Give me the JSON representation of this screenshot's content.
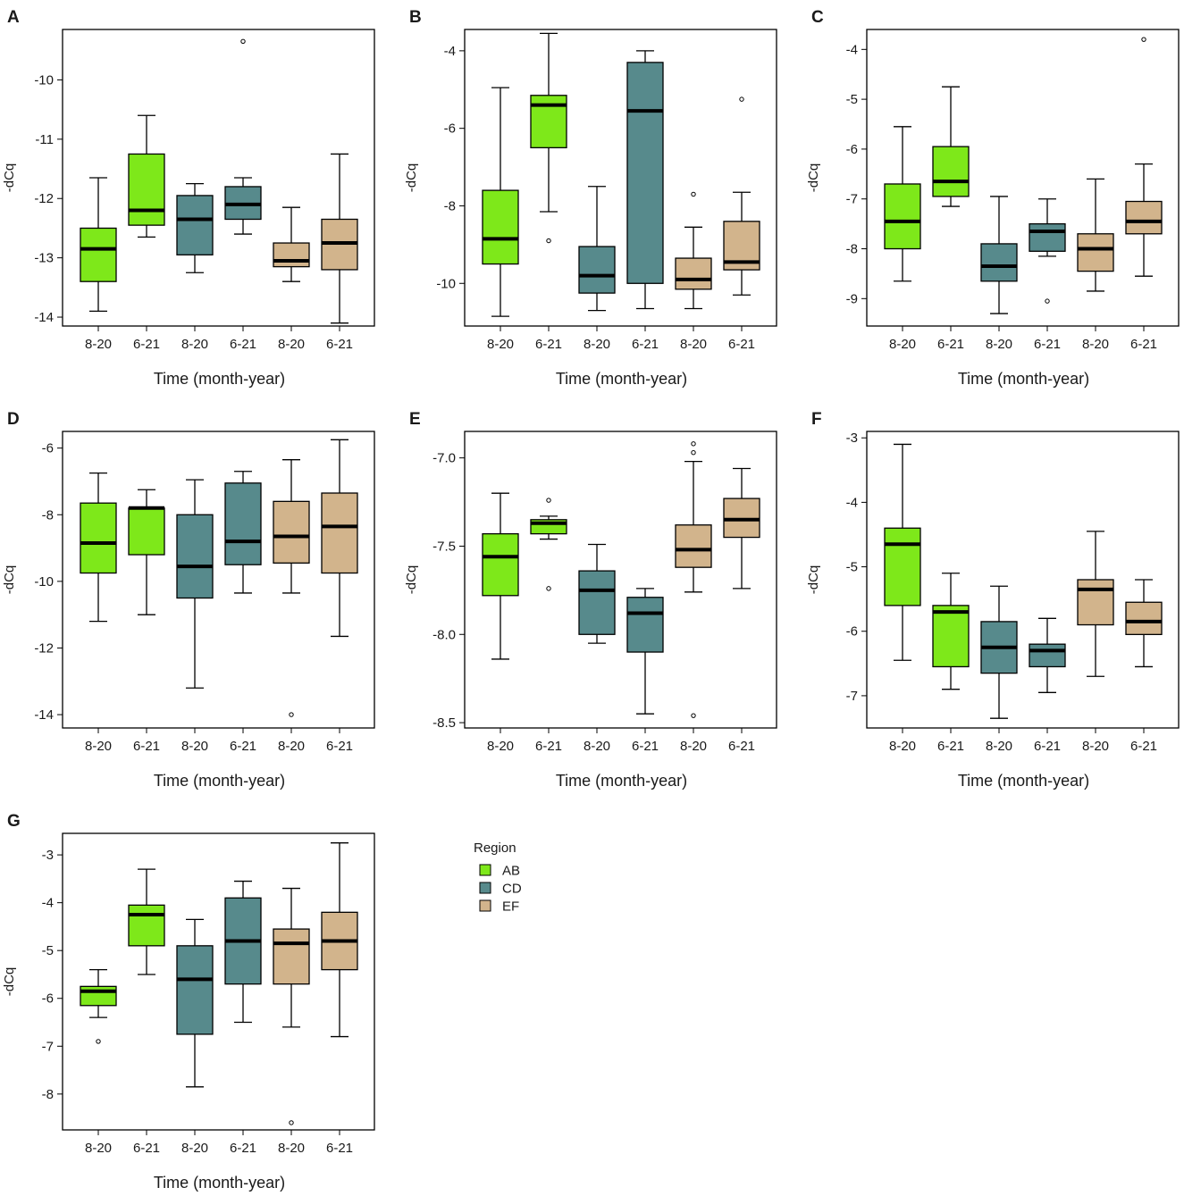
{
  "legend": {
    "title": "Region",
    "items": [
      {
        "label": "AB",
        "color": "#7ee81a"
      },
      {
        "label": "CD",
        "color": "#578a8c"
      },
      {
        "label": "EF",
        "color": "#d2b48c"
      }
    ]
  },
  "chart_data": [
    {
      "type": "boxplot",
      "panel": "A",
      "xlabel": "Time (month-year)",
      "ylabel": "-dCq",
      "ylim": [
        -14.15,
        -9.15
      ],
      "yticks": [
        -10,
        -11,
        -12,
        -13,
        -14
      ],
      "categories": [
        "8-20",
        "6-21",
        "8-20",
        "6-21",
        "8-20",
        "6-21"
      ],
      "regions": [
        "AB",
        "AB",
        "CD",
        "CD",
        "EF",
        "EF"
      ],
      "boxes": [
        {
          "low": -13.9,
          "q1": -13.4,
          "median": -12.85,
          "q3": -12.5,
          "high": -11.65,
          "outliers": []
        },
        {
          "low": -12.65,
          "q1": -12.45,
          "median": -12.2,
          "q3": -11.25,
          "high": -10.6,
          "outliers": []
        },
        {
          "low": -13.25,
          "q1": -12.95,
          "median": -12.35,
          "q3": -11.95,
          "high": -11.75,
          "outliers": []
        },
        {
          "low": -12.6,
          "q1": -12.35,
          "median": -12.1,
          "q3": -11.8,
          "high": -11.65,
          "outliers": [
            -9.35
          ]
        },
        {
          "low": -13.4,
          "q1": -13.15,
          "median": -13.05,
          "q3": -12.75,
          "high": -12.15,
          "outliers": []
        },
        {
          "low": -14.1,
          "q1": -13.2,
          "median": -12.75,
          "q3": -12.35,
          "high": -11.25,
          "outliers": []
        }
      ]
    },
    {
      "type": "boxplot",
      "panel": "B",
      "xlabel": "Time (month-year)",
      "ylabel": "-dCq",
      "ylim": [
        -11.1,
        -3.45
      ],
      "yticks": [
        -4,
        -6,
        -8,
        -10
      ],
      "categories": [
        "8-20",
        "6-21",
        "8-20",
        "6-21",
        "8-20",
        "6-21"
      ],
      "regions": [
        "AB",
        "AB",
        "CD",
        "CD",
        "EF",
        "EF"
      ],
      "boxes": [
        {
          "low": -10.85,
          "q1": -9.5,
          "median": -8.85,
          "q3": -7.6,
          "high": -4.95,
          "outliers": []
        },
        {
          "low": -8.15,
          "q1": -6.5,
          "median": -5.4,
          "q3": -5.15,
          "high": -3.55,
          "outliers": [
            -8.9
          ]
        },
        {
          "low": -10.7,
          "q1": -10.25,
          "median": -9.8,
          "q3": -9.05,
          "high": -7.5,
          "outliers": []
        },
        {
          "low": -10.65,
          "q1": -10.0,
          "median": -5.55,
          "q3": -4.3,
          "high": -4.0,
          "outliers": []
        },
        {
          "low": -10.65,
          "q1": -10.15,
          "median": -9.9,
          "q3": -9.35,
          "high": -8.55,
          "outliers": [
            -7.7
          ]
        },
        {
          "low": -10.3,
          "q1": -9.65,
          "median": -9.45,
          "q3": -8.4,
          "high": -7.65,
          "outliers": [
            -5.25
          ]
        }
      ]
    },
    {
      "type": "boxplot",
      "panel": "C",
      "xlabel": "Time (month-year)",
      "ylabel": "-dCq",
      "ylim": [
        -9.55,
        -3.6
      ],
      "yticks": [
        -4,
        -5,
        -6,
        -7,
        -8,
        -9
      ],
      "categories": [
        "8-20",
        "6-21",
        "8-20",
        "6-21",
        "8-20",
        "6-21"
      ],
      "regions": [
        "AB",
        "AB",
        "CD",
        "CD",
        "EF",
        "EF"
      ],
      "boxes": [
        {
          "low": -8.65,
          "q1": -8.0,
          "median": -7.45,
          "q3": -6.7,
          "high": -5.55,
          "outliers": []
        },
        {
          "low": -7.15,
          "q1": -6.95,
          "median": -6.65,
          "q3": -5.95,
          "high": -4.75,
          "outliers": []
        },
        {
          "low": -9.3,
          "q1": -8.65,
          "median": -8.35,
          "q3": -7.9,
          "high": -6.95,
          "outliers": []
        },
        {
          "low": -8.15,
          "q1": -8.05,
          "median": -7.65,
          "q3": -7.5,
          "high": -7.0,
          "outliers": [
            -9.05
          ]
        },
        {
          "low": -8.85,
          "q1": -8.45,
          "median": -8.0,
          "q3": -7.7,
          "high": -6.6,
          "outliers": []
        },
        {
          "low": -8.55,
          "q1": -7.7,
          "median": -7.45,
          "q3": -7.05,
          "high": -6.3,
          "outliers": [
            -3.8
          ]
        }
      ]
    },
    {
      "type": "boxplot",
      "panel": "D",
      "xlabel": "Time (month-year)",
      "ylabel": "-dCq",
      "ylim": [
        -14.4,
        -5.5
      ],
      "yticks": [
        -6,
        -8,
        -10,
        -12,
        -14
      ],
      "categories": [
        "8-20",
        "6-21",
        "8-20",
        "6-21",
        "8-20",
        "6-21"
      ],
      "regions": [
        "AB",
        "AB",
        "CD",
        "CD",
        "EF",
        "EF"
      ],
      "boxes": [
        {
          "low": -11.2,
          "q1": -9.75,
          "median": -8.85,
          "q3": -7.65,
          "high": -6.75,
          "outliers": []
        },
        {
          "low": -11.0,
          "q1": -9.2,
          "median": -7.8,
          "q3": -7.8,
          "high": -7.25,
          "outliers": []
        },
        {
          "low": -13.2,
          "q1": -10.5,
          "median": -9.55,
          "q3": -8.0,
          "high": -6.95,
          "outliers": []
        },
        {
          "low": -10.35,
          "q1": -9.5,
          "median": -8.8,
          "q3": -7.05,
          "high": -6.7,
          "outliers": []
        },
        {
          "low": -10.35,
          "q1": -9.45,
          "median": -8.65,
          "q3": -7.6,
          "high": -6.35,
          "outliers": [
            -14.0
          ]
        },
        {
          "low": -11.65,
          "q1": -9.75,
          "median": -8.35,
          "q3": -7.35,
          "high": -5.75,
          "outliers": []
        }
      ]
    },
    {
      "type": "boxplot",
      "panel": "E",
      "xlabel": "Time (month-year)",
      "ylabel": "-dCq",
      "ylim": [
        -8.53,
        -6.85
      ],
      "yticks": [
        -7.0,
        -7.5,
        -8.0,
        -8.5
      ],
      "ytick_labels": [
        "-7.0",
        "-7.5",
        "-8.0",
        "-8.5"
      ],
      "categories": [
        "8-20",
        "6-21",
        "8-20",
        "6-21",
        "8-20",
        "6-21"
      ],
      "regions": [
        "AB",
        "AB",
        "CD",
        "CD",
        "EF",
        "EF"
      ],
      "boxes": [
        {
          "low": -8.14,
          "q1": -7.78,
          "median": -7.56,
          "q3": -7.43,
          "high": -7.2,
          "outliers": []
        },
        {
          "low": -7.46,
          "q1": -7.43,
          "median": -7.37,
          "q3": -7.35,
          "high": -7.33,
          "outliers": [
            -7.24,
            -7.74
          ]
        },
        {
          "low": -8.05,
          "q1": -8.0,
          "median": -7.75,
          "q3": -7.64,
          "high": -7.49,
          "outliers": []
        },
        {
          "low": -8.45,
          "q1": -8.1,
          "median": -7.88,
          "q3": -7.79,
          "high": -7.74,
          "outliers": []
        },
        {
          "low": -7.76,
          "q1": -7.62,
          "median": -7.52,
          "q3": -7.38,
          "high": -7.02,
          "outliers": [
            -6.92,
            -6.97,
            -8.46
          ]
        },
        {
          "low": -7.74,
          "q1": -7.45,
          "median": -7.35,
          "q3": -7.23,
          "high": -7.06,
          "outliers": []
        }
      ]
    },
    {
      "type": "boxplot",
      "panel": "F",
      "xlabel": "Time (month-year)",
      "ylabel": "-dCq",
      "ylim": [
        -7.5,
        -2.9
      ],
      "yticks": [
        -3,
        -4,
        -5,
        -6,
        -7
      ],
      "categories": [
        "8-20",
        "6-21",
        "8-20",
        "6-21",
        "8-20",
        "6-21"
      ],
      "regions": [
        "AB",
        "AB",
        "CD",
        "CD",
        "EF",
        "EF"
      ],
      "boxes": [
        {
          "low": -6.45,
          "q1": -5.6,
          "median": -4.65,
          "q3": -4.4,
          "high": -3.1,
          "outliers": []
        },
        {
          "low": -6.9,
          "q1": -6.55,
          "median": -5.7,
          "q3": -5.6,
          "high": -5.1,
          "outliers": []
        },
        {
          "low": -7.35,
          "q1": -6.65,
          "median": -6.25,
          "q3": -5.85,
          "high": -5.3,
          "outliers": []
        },
        {
          "low": -6.95,
          "q1": -6.55,
          "median": -6.3,
          "q3": -6.2,
          "high": -5.8,
          "outliers": []
        },
        {
          "low": -6.7,
          "q1": -5.9,
          "median": -5.35,
          "q3": -5.2,
          "high": -4.45,
          "outliers": []
        },
        {
          "low": -6.55,
          "q1": -6.05,
          "median": -5.85,
          "q3": -5.55,
          "high": -5.2,
          "outliers": []
        }
      ]
    },
    {
      "type": "boxplot",
      "panel": "G",
      "xlabel": "Time (month-year)",
      "ylabel": "-dCq",
      "ylim": [
        -8.75,
        -2.55
      ],
      "yticks": [
        -3,
        -4,
        -5,
        -6,
        -7,
        -8
      ],
      "categories": [
        "8-20",
        "6-21",
        "8-20",
        "6-21",
        "8-20",
        "6-21"
      ],
      "regions": [
        "AB",
        "AB",
        "CD",
        "CD",
        "EF",
        "EF"
      ],
      "boxes": [
        {
          "low": -6.4,
          "q1": -6.15,
          "median": -5.85,
          "q3": -5.75,
          "high": -5.4,
          "outliers": [
            -6.9
          ]
        },
        {
          "low": -5.5,
          "q1": -4.9,
          "median": -4.25,
          "q3": -4.05,
          "high": -3.3,
          "outliers": []
        },
        {
          "low": -7.85,
          "q1": -6.75,
          "median": -5.6,
          "q3": -4.9,
          "high": -4.35,
          "outliers": []
        },
        {
          "low": -6.5,
          "q1": -5.7,
          "median": -4.8,
          "q3": -3.9,
          "high": -3.55,
          "outliers": []
        },
        {
          "low": -6.6,
          "q1": -5.7,
          "median": -4.85,
          "q3": -4.55,
          "high": -3.7,
          "outliers": [
            -8.6
          ]
        },
        {
          "low": -6.8,
          "q1": -5.4,
          "median": -4.8,
          "q3": -4.2,
          "high": -2.75,
          "outliers": []
        }
      ]
    }
  ]
}
